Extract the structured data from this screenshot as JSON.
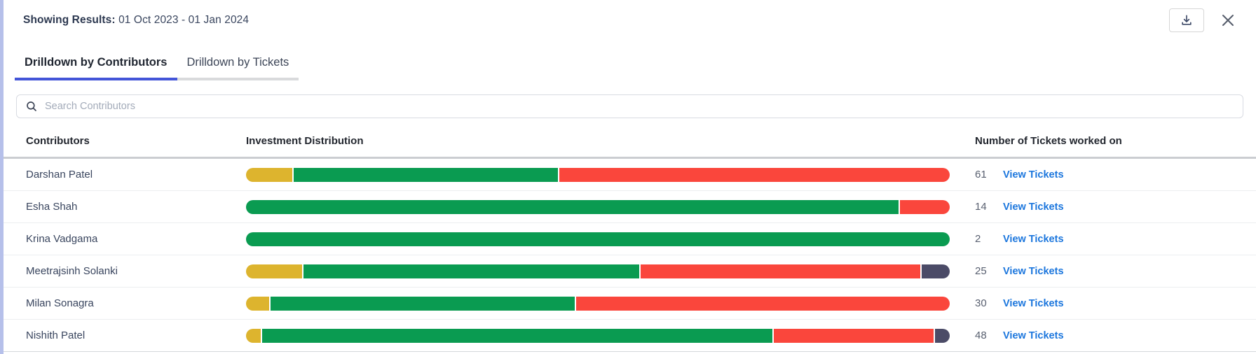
{
  "header": {
    "label": "Showing Results:",
    "value": "01 Oct 2023 - 01 Jan 2024"
  },
  "tabs": [
    {
      "label": "Drilldown by Contributors",
      "active": true
    },
    {
      "label": "Drilldown by Tickets",
      "active": false
    }
  ],
  "search": {
    "placeholder": "Search Contributors"
  },
  "table": {
    "columns": [
      "Contributors",
      "Investment Distribution",
      "Number of Tickets worked on"
    ],
    "link_label": "View Tickets",
    "rows": [
      {
        "name": "Darshan Patel",
        "tickets": "61",
        "segments": [
          {
            "color": "yellow",
            "pct": 6.6
          },
          {
            "color": "green",
            "pct": 37.7
          },
          {
            "color": "red",
            "pct": 55.7
          }
        ]
      },
      {
        "name": "Esha Shah",
        "tickets": "14",
        "segments": [
          {
            "color": "green",
            "pct": 92.9
          },
          {
            "color": "red",
            "pct": 7.1
          }
        ]
      },
      {
        "name": "Krina Vadgama",
        "tickets": "2",
        "segments": [
          {
            "color": "green",
            "pct": 100
          }
        ]
      },
      {
        "name": "Meetrajsinh Solanki",
        "tickets": "25",
        "segments": [
          {
            "color": "yellow",
            "pct": 8
          },
          {
            "color": "green",
            "pct": 48
          },
          {
            "color": "red",
            "pct": 40
          },
          {
            "color": "dark",
            "pct": 4
          }
        ]
      },
      {
        "name": "Milan Sonagra",
        "tickets": "30",
        "segments": [
          {
            "color": "yellow",
            "pct": 3.3
          },
          {
            "color": "green",
            "pct": 43.4
          },
          {
            "color": "red",
            "pct": 53.3
          }
        ]
      },
      {
        "name": "Nishith Patel",
        "tickets": "48",
        "segments": [
          {
            "color": "yellow",
            "pct": 2.1
          },
          {
            "color": "green",
            "pct": 72.9
          },
          {
            "color": "red",
            "pct": 22.9
          },
          {
            "color": "dark",
            "pct": 2.1
          }
        ]
      }
    ]
  },
  "colors": {
    "yellow": "#ddb42e",
    "green": "#0a9b51",
    "red": "#fa463c",
    "dark": "#4b4b67",
    "accent_tab": "#4355d8",
    "link_blue": "#1b76dd",
    "left_stripe": "#b6c0ea"
  },
  "chart_data": {
    "type": "bar",
    "orientation": "horizontal-stacked",
    "title": "Investment Distribution",
    "categories": [
      "Darshan Patel",
      "Esha Shah",
      "Krina Vadgama",
      "Meetrajsinh Solanki",
      "Milan Sonagra",
      "Nishith Patel"
    ],
    "series": [
      {
        "name": "yellow-segment",
        "values": [
          6.6,
          0,
          0,
          8,
          3.3,
          2.1
        ]
      },
      {
        "name": "green-segment",
        "values": [
          37.7,
          92.9,
          100,
          48,
          43.4,
          72.9
        ]
      },
      {
        "name": "red-segment",
        "values": [
          55.7,
          7.1,
          0,
          40,
          53.3,
          22.9
        ]
      },
      {
        "name": "dark-segment",
        "values": [
          0,
          0,
          0,
          4,
          0,
          2.1
        ]
      }
    ],
    "values_unit": "percent of bar width",
    "tickets_worked_on": [
      61,
      14,
      2,
      25,
      30,
      48
    ],
    "legend_position": "none",
    "grid": false
  }
}
